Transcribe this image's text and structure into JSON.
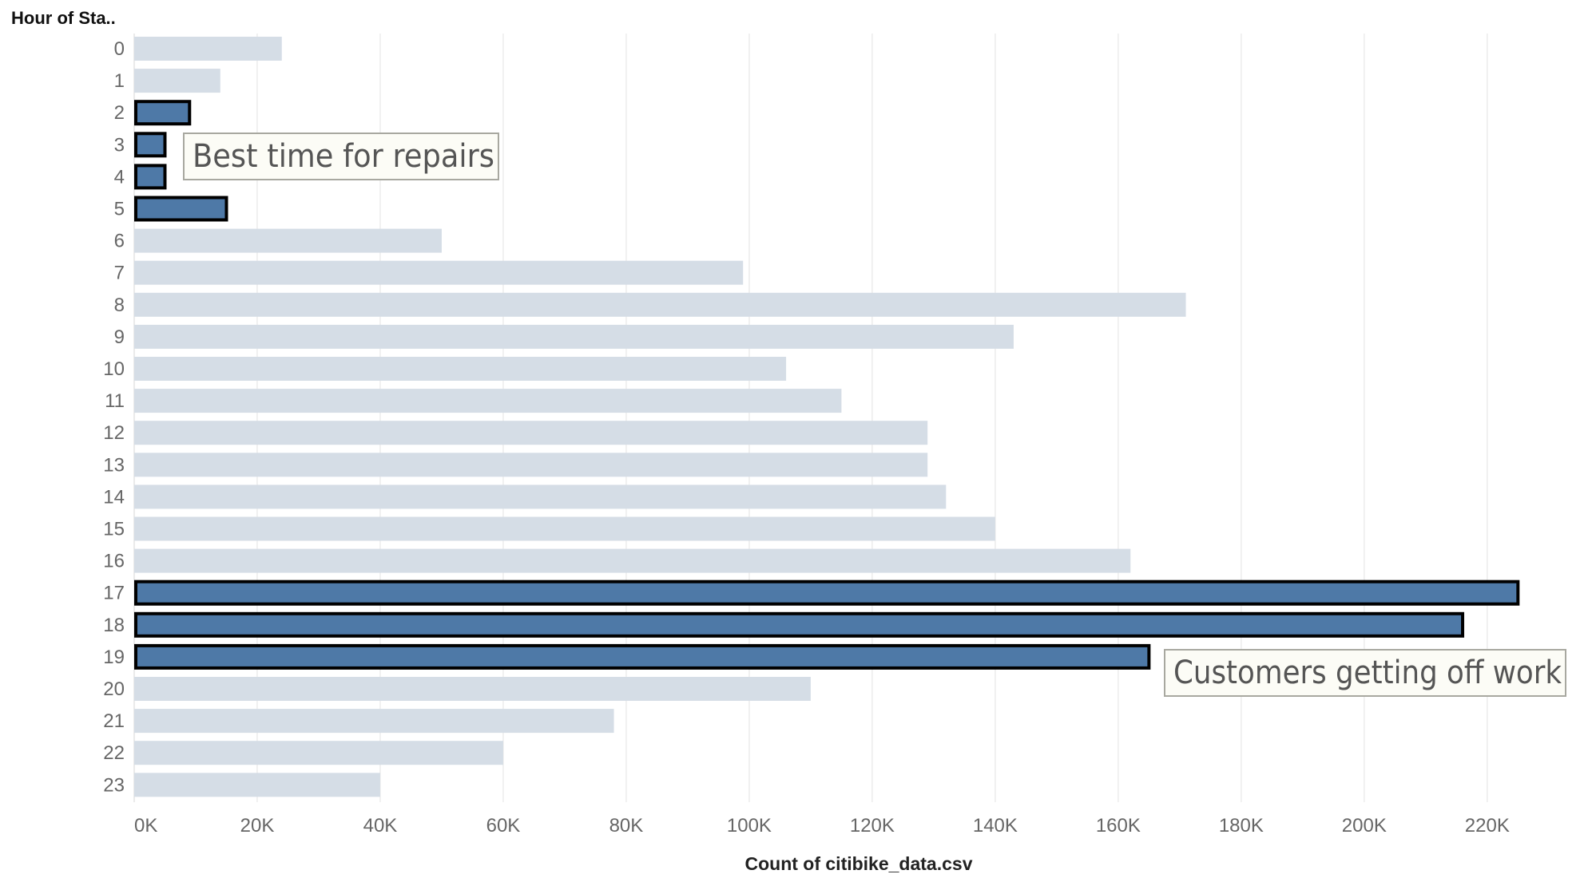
{
  "chart_data": {
    "type": "bar",
    "orientation": "horizontal",
    "y_axis_title": "Hour of Sta..",
    "x_axis_title": "Count of citibike_data.csv",
    "categories": [
      "0",
      "1",
      "2",
      "3",
      "4",
      "5",
      "6",
      "7",
      "8",
      "9",
      "10",
      "11",
      "12",
      "13",
      "14",
      "15",
      "16",
      "17",
      "18",
      "19",
      "20",
      "21",
      "22",
      "23"
    ],
    "values": [
      24000,
      14000,
      9000,
      5000,
      5000,
      15000,
      50000,
      99000,
      171000,
      143000,
      106000,
      115000,
      129000,
      129000,
      132000,
      140000,
      162000,
      225000,
      216000,
      165000,
      110000,
      78000,
      60000,
      40000
    ],
    "highlighted": [
      "2",
      "3",
      "4",
      "5",
      "17",
      "18",
      "19"
    ],
    "x_ticks": [
      0,
      20000,
      40000,
      60000,
      80000,
      100000,
      120000,
      140000,
      160000,
      180000,
      200000,
      220000
    ],
    "x_tick_labels": [
      "0K",
      "20K",
      "40K",
      "60K",
      "80K",
      "100K",
      "120K",
      "140K",
      "160K",
      "180K",
      "200K",
      "220K"
    ],
    "xlim": [
      0,
      236000
    ],
    "grid": true,
    "colors": {
      "highlight_fill": "#4e79a7",
      "highlight_stroke": "#000000",
      "default_fill": "#d5dde6",
      "grid": "#ececec",
      "annotation_bg": "#fcfcf6",
      "annotation_border": "#a8a8a0"
    },
    "annotations": [
      {
        "text": "Best time for repairs",
        "anchor_category": "3"
      },
      {
        "text": "Customers getting off work",
        "anchor_category": "19"
      }
    ]
  }
}
